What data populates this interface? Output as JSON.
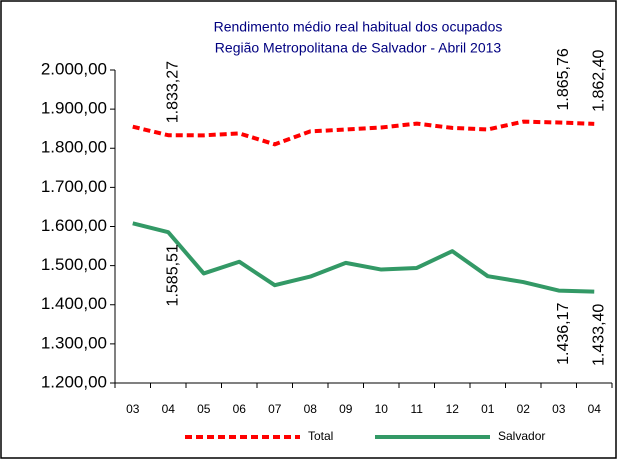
{
  "chart_data": {
    "type": "line",
    "title": "Rendimento médio real habitual dos ocupados",
    "subtitle": "Região Metropolitana de Salvador - Abril 2013",
    "categories": [
      "03",
      "04",
      "05",
      "06",
      "07",
      "08",
      "09",
      "10",
      "11",
      "12",
      "01",
      "02",
      "03",
      "04"
    ],
    "series": [
      {
        "name": "Total",
        "color": "#ff0000",
        "dashed": true,
        "values": [
          1855,
          1833.27,
          1833,
          1838,
          1810,
          1843,
          1848,
          1853,
          1863,
          1852,
          1848,
          1868,
          1865.76,
          1862.4
        ],
        "value_labels": [
          null,
          "1.833,27",
          null,
          null,
          null,
          null,
          null,
          null,
          null,
          null,
          null,
          null,
          "1.865,76",
          "1.862,40"
        ]
      },
      {
        "name": "Salvador",
        "color": "#339966",
        "dashed": false,
        "values": [
          1608,
          1585.51,
          1480,
          1510,
          1450,
          1472,
          1507,
          1490,
          1494,
          1537,
          1473,
          1458,
          1436.17,
          1433.4
        ],
        "value_labels": [
          null,
          "1.585,51",
          null,
          null,
          null,
          null,
          null,
          null,
          null,
          null,
          null,
          null,
          "1.436,17",
          "1.433,40"
        ]
      }
    ],
    "ylim": [
      1200,
      2000
    ],
    "yticks": [
      {
        "value": 1200,
        "label": "1.200,00"
      },
      {
        "value": 1300,
        "label": "1.300,00"
      },
      {
        "value": 1400,
        "label": "1.400,00"
      },
      {
        "value": 1500,
        "label": "1.500,00"
      },
      {
        "value": 1600,
        "label": "1.600,00"
      },
      {
        "value": 1700,
        "label": "1.700,00"
      },
      {
        "value": 1800,
        "label": "1.800,00"
      },
      {
        "value": 1900,
        "label": "1.900,00"
      },
      {
        "value": 2000,
        "label": "2.000,00"
      }
    ],
    "grid": false
  }
}
